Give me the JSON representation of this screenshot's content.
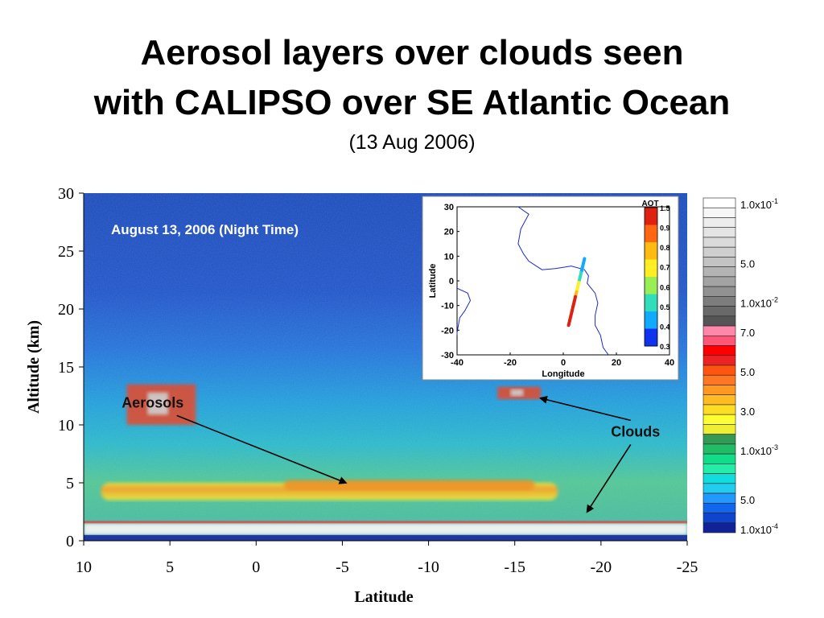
{
  "page": {
    "title_line1": "Aerosol layers over clouds seen",
    "title_line2": "with CALIPSO over SE Atlantic Ocean",
    "subtitle": "(13 Aug 2006)"
  },
  "chart_data": [
    {
      "type": "heatmap",
      "panel_label": "August 13, 2006 (Night Time)",
      "xlabel": "Latitude",
      "ylabel": "Altitude (km)",
      "x_ticks": [
        "10",
        "5",
        "0",
        "-5",
        "-10",
        "-15",
        "-20",
        "-25"
      ],
      "x_tick_values": [
        10,
        5,
        0,
        -5,
        -10,
        -15,
        -20,
        -25
      ],
      "y_ticks": [
        "0",
        "5",
        "10",
        "15",
        "20",
        "25",
        "30"
      ],
      "y_tick_values": [
        0,
        5,
        10,
        15,
        20,
        25,
        30
      ],
      "xlim": [
        10,
        -25
      ],
      "ylim": [
        0,
        30
      ],
      "annotations": [
        {
          "text": "Aerosols",
          "label_at": [
            6,
            11.5
          ],
          "arrow_to": [
            -5.2,
            5
          ]
        },
        {
          "text": "Clouds",
          "label_at": [
            -22,
            9
          ],
          "arrows_to": [
            [
              -16.5,
              12.3
            ],
            [
              -19.2,
              2.5
            ]
          ]
        }
      ],
      "features": [
        {
          "name": "aerosol layer",
          "lat_range": [
            9,
            -17.5
          ],
          "alt_range": [
            3.5,
            5
          ]
        },
        {
          "name": "low cloud",
          "lat_range": [
            10,
            -25
          ],
          "alt_range": [
            0.5,
            1.5
          ]
        },
        {
          "name": "high cloud",
          "lat_range": [
            7.5,
            3.5
          ],
          "alt_range": [
            10,
            13.5
          ]
        },
        {
          "name": "high cloud",
          "lat_range": [
            -14,
            -16.5
          ],
          "alt_range": [
            12.2,
            13.3
          ]
        }
      ],
      "colorbar": {
        "labels": [
          "1.0x10-1",
          "5.0",
          "1.0x10-2",
          "7.0",
          "5.0",
          "3.0",
          "1.0x10-3",
          "5.0",
          "1.0x10-4"
        ],
        "colors": [
          "#ffffff",
          "#f6f6f6",
          "#ededed",
          "#e4e4e4",
          "#dadada",
          "#cfcfcf",
          "#c3c3c3",
          "#b4b4b4",
          "#a3a3a3",
          "#919191",
          "#7d7d7d",
          "#696969",
          "#555555",
          "#ff88aa",
          "#ff5577",
          "#ff0000",
          "#ee2222",
          "#ff5511",
          "#ff7722",
          "#ff9922",
          "#ffbb22",
          "#ffdd22",
          "#ffff33",
          "#eeee33",
          "#339955",
          "#22bb66",
          "#11dd88",
          "#22eeaa",
          "#11dddd",
          "#22ccee",
          "#2299ff",
          "#1166ee",
          "#1144cc",
          "#112299"
        ]
      }
    },
    {
      "type": "map",
      "xlabel": "Longitude",
      "ylabel": "Latitude",
      "x_ticks": [
        "-40",
        "-20",
        "0",
        "20",
        "40"
      ],
      "x_tick_values": [
        -40,
        -20,
        0,
        20,
        40
      ],
      "y_ticks": [
        "30",
        "20",
        "10",
        "0",
        "-10",
        "-20",
        "-30"
      ],
      "y_tick_values": [
        30,
        20,
        10,
        0,
        -10,
        -20,
        -30
      ],
      "xlim": [
        -40,
        40
      ],
      "ylim": [
        -30,
        30
      ],
      "colorbar_title": "AOT",
      "colorbar_ticks": [
        "1.5",
        "0.9",
        "0.8",
        "0.7",
        "0.6",
        "0.5",
        "0.4",
        "0.3"
      ],
      "colorbar_colors": [
        "#dd2211",
        "#ff6611",
        "#ffbb11",
        "#ffee22",
        "#99ee55",
        "#33ddbb",
        "#11aaff",
        "#1133ee"
      ],
      "track": {
        "lon": [
          8,
          2
        ],
        "lat": [
          9,
          -18
        ]
      }
    }
  ]
}
